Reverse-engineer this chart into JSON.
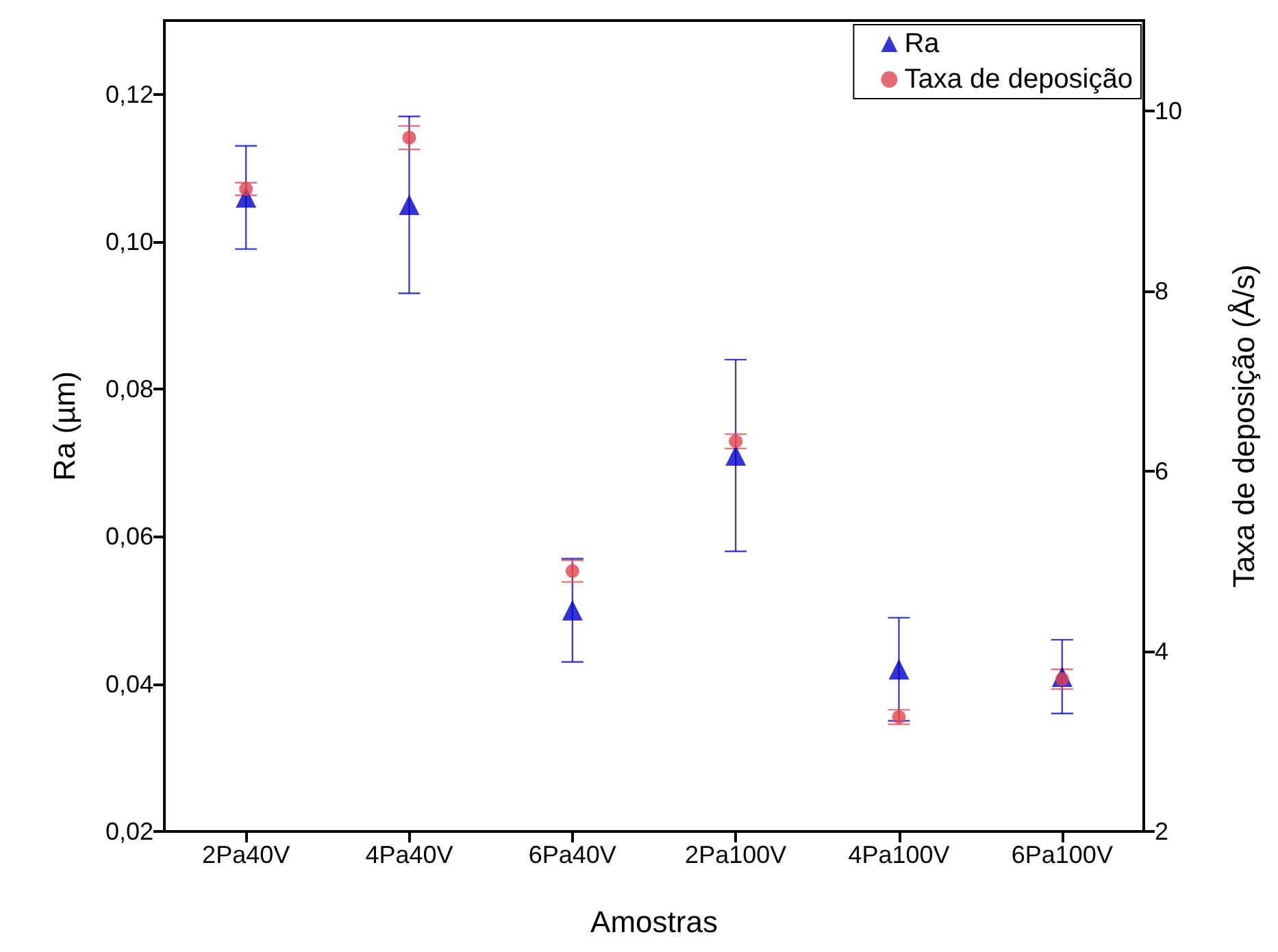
{
  "chart_data": {
    "type": "scatter",
    "xlabel": "Amostras",
    "ylabel": "Ra (µm)",
    "y2label": "Taxa de deposição (Å/s)",
    "categories": [
      "2Pa40V",
      "4Pa40V",
      "6Pa40V",
      "2Pa100V",
      "4Pa100V",
      "6Pa100V"
    ],
    "series": [
      {
        "name": "Ra",
        "color": "#0000cc",
        "marker": "triangle",
        "values": [
          0.106,
          0.105,
          0.05,
          0.071,
          0.042,
          0.041
        ],
        "errors": [
          0.007,
          0.012,
          0.007,
          0.013,
          0.007,
          0.005
        ]
      },
      {
        "name": "Taxa de deposição",
        "color": "#e0454f",
        "marker": "circle",
        "axis": "y2",
        "values": [
          9.13,
          9.7,
          4.89,
          6.33,
          3.27,
          3.69
        ],
        "errors": [
          0.07,
          0.13,
          0.12,
          0.08,
          0.08,
          0.11
        ]
      }
    ],
    "ylim": [
      0.02,
      0.13
    ],
    "yticks": [
      {
        "value": 0.02,
        "label": "0,02"
      },
      {
        "value": 0.04,
        "label": "0,04"
      },
      {
        "value": 0.06,
        "label": "0,06"
      },
      {
        "value": 0.08,
        "label": "0,08"
      },
      {
        "value": 0.1,
        "label": "0,10"
      },
      {
        "value": 0.12,
        "label": "0,12"
      }
    ],
    "y2lim": [
      2,
      11
    ],
    "y2ticks": [
      2,
      4,
      6,
      8,
      10
    ],
    "legend": "top right",
    "grid": false
  }
}
